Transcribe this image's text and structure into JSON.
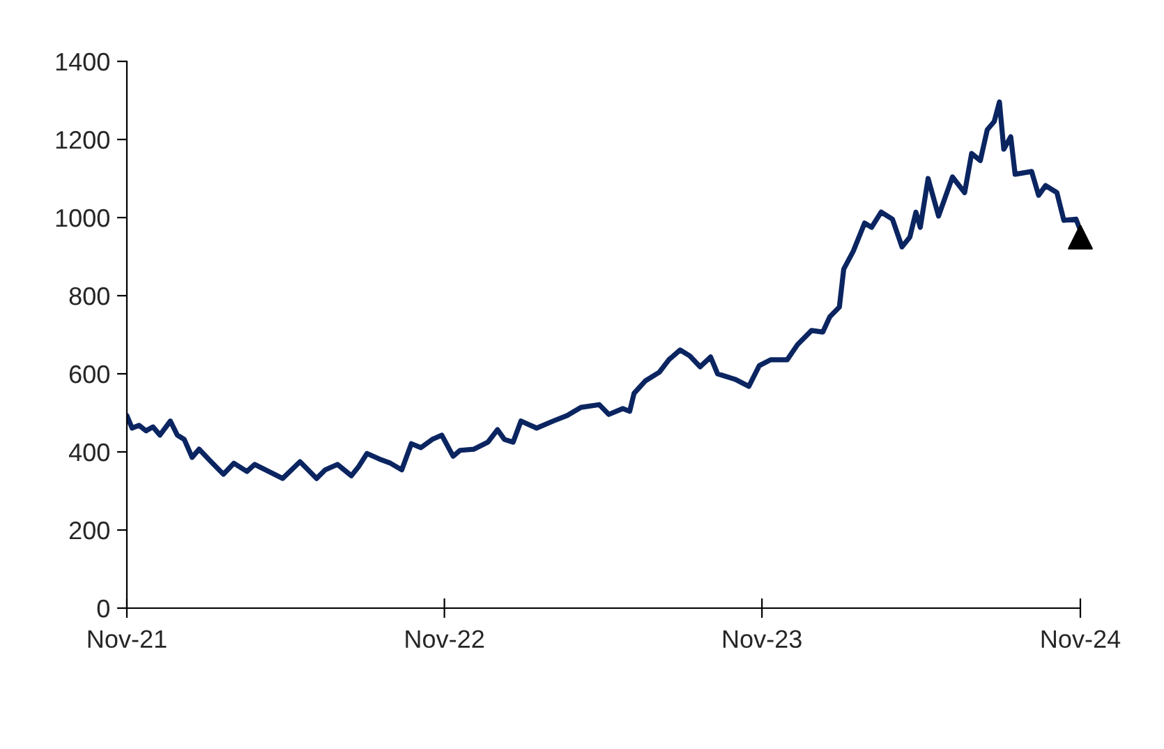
{
  "chart_data": {
    "type": "line",
    "xlim": [
      "2021-11-01",
      "2024-11-01"
    ],
    "xticks": [
      {
        "value": "2021-11-01",
        "label": "Nov-21"
      },
      {
        "value": "2022-11-01",
        "label": "Nov-22"
      },
      {
        "value": "2023-11-01",
        "label": "Nov-23"
      },
      {
        "value": "2024-11-01",
        "label": "Nov-24"
      }
    ],
    "ylim": [
      0,
      1400
    ],
    "yticks": [
      0,
      200,
      400,
      600,
      800,
      1000,
      1200,
      1400
    ],
    "grid": false,
    "legend": false,
    "series": [
      {
        "color": "#0b2561",
        "line_style": "solid",
        "marker": "none",
        "x": [
          "2021-11-01",
          "2021-11-07",
          "2021-11-15",
          "2021-11-23",
          "2021-12-01",
          "2021-12-09",
          "2021-12-21",
          "2021-12-29",
          "2022-01-06",
          "2022-01-15",
          "2022-01-23",
          "2022-02-04",
          "2022-02-15",
          "2022-02-20",
          "2022-03-04",
          "2022-03-19",
          "2022-03-28",
          "2022-04-13",
          "2022-04-29",
          "2022-05-19",
          "2022-06-07",
          "2022-06-17",
          "2022-07-01",
          "2022-07-17",
          "2022-07-25",
          "2022-08-04",
          "2022-08-18",
          "2022-08-31",
          "2022-09-13",
          "2022-09-24",
          "2022-10-05",
          "2022-10-18",
          "2022-10-29",
          "2022-11-11",
          "2022-11-19",
          "2022-12-05",
          "2022-12-21",
          "2023-01-01",
          "2023-01-09",
          "2023-01-19",
          "2023-01-28",
          "2023-02-15",
          "2023-03-06",
          "2023-03-22",
          "2023-04-07",
          "2023-04-28",
          "2023-05-09",
          "2023-05-25",
          "2023-06-02",
          "2023-06-07",
          "2023-06-20",
          "2023-07-06",
          "2023-07-17",
          "2023-07-30",
          "2023-08-10",
          "2023-08-22",
          "2023-09-03",
          "2023-09-11",
          "2023-10-01",
          "2023-10-17",
          "2023-10-29",
          "2023-11-11",
          "2023-11-30",
          "2023-12-12",
          "2023-12-28",
          "2024-01-10",
          "2024-01-18",
          "2024-01-29",
          "2024-02-03",
          "2024-02-14",
          "2024-02-27",
          "2024-03-06",
          "2024-03-17",
          "2024-03-30",
          "2024-04-10",
          "2024-04-19",
          "2024-04-26",
          "2024-05-01",
          "2024-05-10",
          "2024-05-22",
          "2024-06-07",
          "2024-06-21",
          "2024-06-29",
          "2024-07-09",
          "2024-07-17",
          "2024-07-25",
          "2024-07-31",
          "2024-08-05",
          "2024-08-13",
          "2024-08-18",
          "2024-09-06",
          "2024-09-14",
          "2024-09-22",
          "2024-10-05",
          "2024-10-13",
          "2024-10-27",
          "2024-11-01"
        ],
        "values": [
          493,
          461,
          468,
          454,
          464,
          443,
          479,
          443,
          432,
          386,
          407,
          379,
          354,
          343,
          371,
          350,
          368,
          350,
          332,
          375,
          332,
          354,
          368,
          339,
          361,
          396,
          382,
          371,
          354,
          421,
          411,
          432,
          443,
          389,
          404,
          407,
          425,
          457,
          432,
          425,
          479,
          461,
          479,
          493,
          514,
          521,
          496,
          511,
          504,
          550,
          582,
          604,
          636,
          661,
          646,
          618,
          643,
          600,
          586,
          568,
          621,
          636,
          636,
          675,
          711,
          707,
          746,
          771,
          868,
          914,
          986,
          975,
          1014,
          996,
          925,
          950,
          1014,
          975,
          1100,
          1004,
          1104,
          1064,
          1164,
          1146,
          1225,
          1246,
          1296,
          1175,
          1207,
          1111,
          1118,
          1057,
          1082,
          1064,
          993,
          996,
          968
        ]
      },
      {
        "type": "scatter",
        "color": "#000000",
        "marker": "triangle",
        "x": [
          "2024-11-01"
        ],
        "values": [
          950
        ]
      }
    ]
  }
}
